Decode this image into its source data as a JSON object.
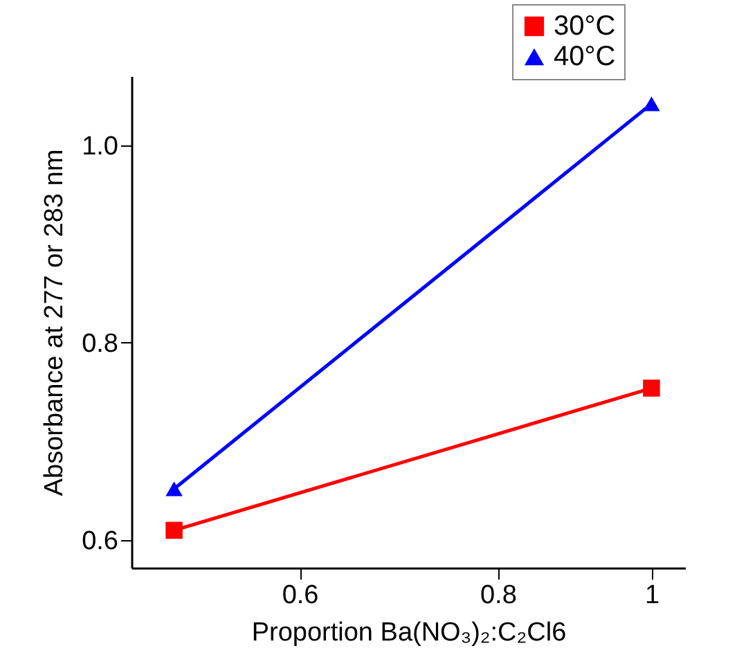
{
  "chart_data": {
    "type": "line",
    "xlabel": "Proportion Ba(NO₃)₂:C₂Cl6",
    "ylabel": "Absorbance at 277 or 283 nm",
    "x": [
      0.5,
      1
    ],
    "series": [
      {
        "name": "30°C",
        "color": "#ff0000",
        "marker": "square",
        "values": [
          0.61,
          0.754
        ]
      },
      {
        "name": "40°C",
        "color": "#0000ff",
        "marker": "triangle",
        "values": [
          0.652,
          1.042
        ]
      }
    ],
    "log": "x",
    "xlim": [
      0.47,
      1.05
    ],
    "xticks": [
      0.6,
      0.8,
      1
    ],
    "ylim": [
      0.572,
      1.07
    ],
    "yticks": [
      0.6,
      0.8,
      {
        "value": 1,
        "label": "1.0"
      }
    ],
    "grid": false,
    "legend": "top right",
    "line_style": "solid"
  }
}
